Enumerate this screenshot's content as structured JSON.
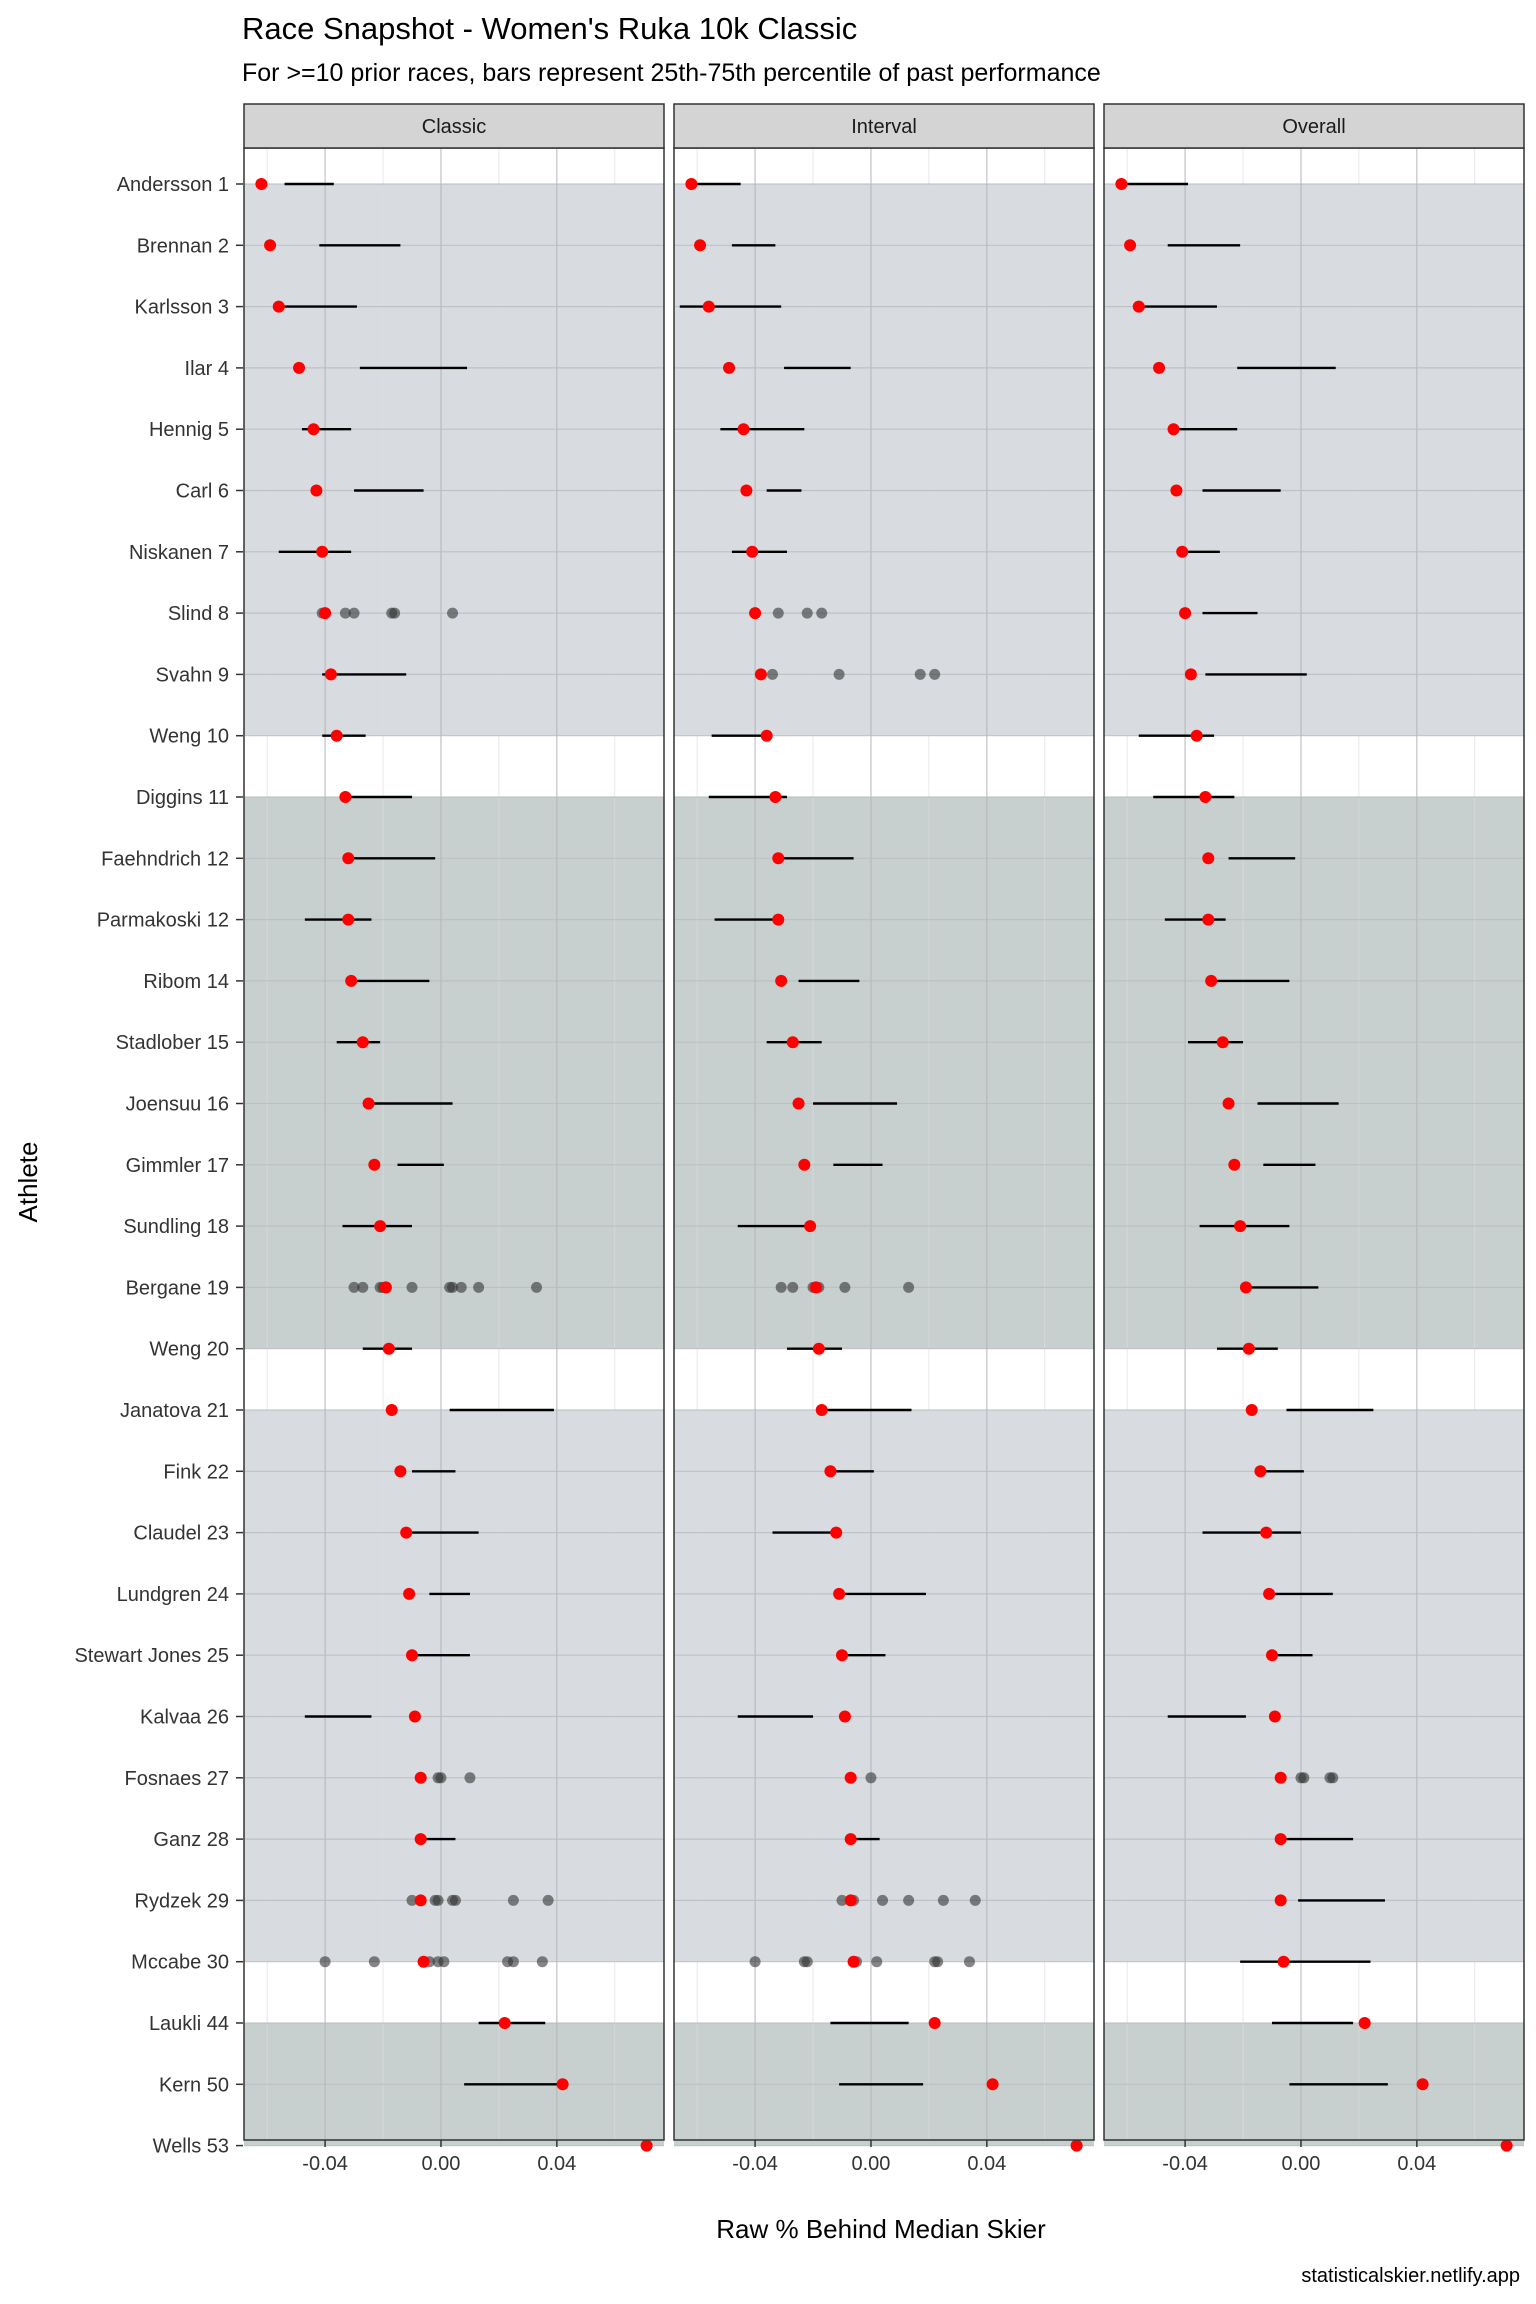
{
  "title": "Race Snapshot -  Women's Ruka 10k Classic",
  "subtitle": "For >=10 prior races, bars represent 25th-75th percentile of past performance",
  "caption": "statisticalskier.netlify.app",
  "colors": {
    "band_a": "#d8dce0",
    "band_b": "#c8d0cf",
    "strip_bg": "#d4d4d4",
    "point_current": "#ff0000",
    "point_past": "#333333",
    "bar": "#000000"
  },
  "chart_data": {
    "type": "scatter",
    "xlabel": "Raw % Behind Median Skier",
    "ylabel": "Athlete",
    "xlim": [
      -0.068,
      0.077
    ],
    "xticks": [
      -0.04,
      0.0,
      0.04
    ],
    "xtick_labels": [
      "-0.04",
      "0.00",
      "0.04"
    ],
    "grid": true,
    "panels": [
      "Classic",
      "Interval",
      "Overall"
    ],
    "athletes": [
      "Andersson 1",
      "Brennan 2",
      "Karlsson 3",
      "Ilar 4",
      "Hennig 5",
      "Carl 6",
      "Niskanen 7",
      "Slind 8",
      "Svahn 9",
      "Weng 10",
      "Diggins 11",
      "Faehndrich 12",
      "Parmakoski 12",
      "Ribom 14",
      "Stadlober 15",
      "Joensuu 16",
      "Gimmler 17",
      "Sundling 18",
      "Bergane 19",
      "Weng 20",
      "Janatova 21",
      "Fink 22",
      "Claudel 23",
      "Lundgren 24",
      "Stewart Jones 25",
      "Kalvaa 26",
      "Fosnaes 27",
      "Ganz 28",
      "Rydzek 29",
      "Mccabe 30",
      "Laukli 44",
      "Kern 50",
      "Wells 53"
    ],
    "bands": [
      {
        "from": 0,
        "to": 9,
        "color": "band_a"
      },
      {
        "from": 10,
        "to": 19,
        "color": "band_b"
      },
      {
        "from": 20,
        "to": 29,
        "color": "band_a"
      },
      {
        "from": 30,
        "to": 32,
        "color": "band_b"
      }
    ],
    "current_race": [
      -0.062,
      -0.059,
      -0.056,
      -0.049,
      -0.044,
      -0.043,
      -0.041,
      -0.04,
      -0.038,
      -0.036,
      -0.033,
      -0.032,
      -0.032,
      -0.031,
      -0.027,
      -0.025,
      -0.023,
      -0.021,
      -0.019,
      -0.018,
      -0.017,
      -0.014,
      -0.012,
      -0.011,
      -0.01,
      -0.009,
      -0.007,
      -0.007,
      -0.007,
      -0.006,
      0.022,
      0.042,
      0.071
    ],
    "ranges": {
      "Classic": [
        [
          -0.054,
          -0.037
        ],
        [
          -0.042,
          -0.014
        ],
        [
          -0.056,
          -0.029
        ],
        [
          -0.028,
          0.009
        ],
        [
          -0.048,
          -0.031
        ],
        [
          -0.03,
          -0.006
        ],
        [
          -0.056,
          -0.031
        ],
        null,
        [
          -0.041,
          -0.012
        ],
        [
          -0.041,
          -0.026
        ],
        [
          -0.033,
          -0.01
        ],
        [
          -0.032,
          -0.002
        ],
        [
          -0.047,
          -0.024
        ],
        [
          -0.03,
          -0.004
        ],
        [
          -0.036,
          -0.021
        ],
        [
          -0.025,
          0.004
        ],
        [
          -0.015,
          0.001
        ],
        [
          -0.034,
          -0.01
        ],
        null,
        [
          -0.027,
          -0.01
        ],
        [
          0.003,
          0.039
        ],
        [
          -0.01,
          0.005
        ],
        [
          -0.013,
          0.013
        ],
        [
          -0.004,
          0.01
        ],
        [
          -0.01,
          0.01
        ],
        [
          -0.047,
          -0.024
        ],
        null,
        [
          -0.007,
          0.005
        ],
        null,
        null,
        [
          0.013,
          0.036
        ],
        [
          0.008,
          0.042
        ],
        null
      ],
      "Interval": [
        [
          -0.062,
          -0.045
        ],
        [
          -0.048,
          -0.033
        ],
        [
          -0.066,
          -0.031
        ],
        [
          -0.03,
          -0.007
        ],
        [
          -0.052,
          -0.023
        ],
        [
          -0.036,
          -0.024
        ],
        [
          -0.048,
          -0.029
        ],
        null,
        null,
        [
          -0.055,
          -0.035
        ],
        [
          -0.056,
          -0.029
        ],
        [
          -0.033,
          -0.006
        ],
        [
          -0.054,
          -0.034
        ],
        [
          -0.025,
          -0.004
        ],
        [
          -0.036,
          -0.017
        ],
        [
          -0.02,
          0.009
        ],
        [
          -0.013,
          0.004
        ],
        [
          -0.046,
          -0.021
        ],
        null,
        [
          -0.029,
          -0.01
        ],
        [
          -0.016,
          0.014
        ],
        [
          -0.013,
          0.001
        ],
        [
          -0.034,
          -0.013
        ],
        [
          -0.011,
          0.019
        ],
        [
          -0.008,
          0.005
        ],
        [
          -0.046,
          -0.02
        ],
        null,
        [
          -0.007,
          0.003
        ],
        null,
        null,
        [
          -0.014,
          0.013
        ],
        [
          -0.011,
          0.018
        ],
        null
      ],
      "Overall": [
        [
          -0.061,
          -0.039
        ],
        [
          -0.046,
          -0.021
        ],
        [
          -0.055,
          -0.029
        ],
        [
          -0.022,
          0.012
        ],
        [
          -0.043,
          -0.022
        ],
        [
          -0.034,
          -0.007
        ],
        [
          -0.041,
          -0.028
        ],
        [
          -0.034,
          -0.015
        ],
        [
          -0.033,
          0.002
        ],
        [
          -0.056,
          -0.03
        ],
        [
          -0.051,
          -0.023
        ],
        [
          -0.025,
          -0.002
        ],
        [
          -0.047,
          -0.026
        ],
        [
          -0.029,
          -0.004
        ],
        [
          -0.039,
          -0.02
        ],
        [
          -0.015,
          0.013
        ],
        [
          -0.013,
          0.005
        ],
        [
          -0.035,
          -0.004
        ],
        [
          -0.02,
          0.006
        ],
        [
          -0.029,
          -0.008
        ],
        [
          -0.005,
          0.025
        ],
        [
          -0.015,
          0.001
        ],
        [
          -0.034,
          0.0
        ],
        [
          -0.012,
          0.011
        ],
        [
          -0.011,
          0.004
        ],
        [
          -0.046,
          -0.019
        ],
        null,
        [
          -0.007,
          0.018
        ],
        [
          -0.001,
          0.029
        ],
        [
          -0.021,
          0.024
        ],
        [
          -0.01,
          0.018
        ],
        [
          -0.004,
          0.03
        ],
        null
      ]
    },
    "past_races": {
      "Classic": [
        {
          "athlete": 7,
          "values": [
            -0.041,
            -0.04,
            -0.04,
            -0.033,
            -0.03,
            -0.017,
            -0.016,
            0.004
          ]
        },
        {
          "athlete": 18,
          "values": [
            -0.03,
            -0.027,
            -0.021,
            -0.02,
            -0.01,
            0.003,
            0.004,
            0.007,
            0.013,
            0.033
          ]
        },
        {
          "athlete": 26,
          "values": [
            -0.001,
            0.0,
            0.01
          ]
        },
        {
          "athlete": 28,
          "values": [
            -0.01,
            -0.002,
            -0.001,
            0.004,
            0.005,
            0.025,
            0.037
          ]
        },
        {
          "athlete": 29,
          "values": [
            -0.04,
            -0.023,
            -0.004,
            -0.001,
            0.001,
            0.023,
            0.025,
            0.035
          ]
        }
      ],
      "Interval": [
        {
          "athlete": 7,
          "values": [
            -0.032,
            -0.022,
            -0.017
          ]
        },
        {
          "athlete": 8,
          "values": [
            -0.034,
            -0.011,
            0.017,
            0.022
          ]
        },
        {
          "athlete": 18,
          "values": [
            -0.031,
            -0.027,
            -0.02,
            -0.018,
            -0.009,
            0.013
          ]
        },
        {
          "athlete": 26,
          "values": [
            0.0
          ]
        },
        {
          "athlete": 28,
          "values": [
            -0.01,
            -0.006,
            0.004,
            0.013,
            0.025,
            0.036
          ]
        },
        {
          "athlete": 29,
          "values": [
            -0.04,
            -0.023,
            -0.022,
            -0.005,
            0.002,
            0.022,
            0.023,
            0.034
          ]
        }
      ],
      "Overall": [
        {
          "athlete": 26,
          "values": [
            0.0,
            0.001,
            0.01,
            0.011
          ]
        }
      ]
    }
  }
}
